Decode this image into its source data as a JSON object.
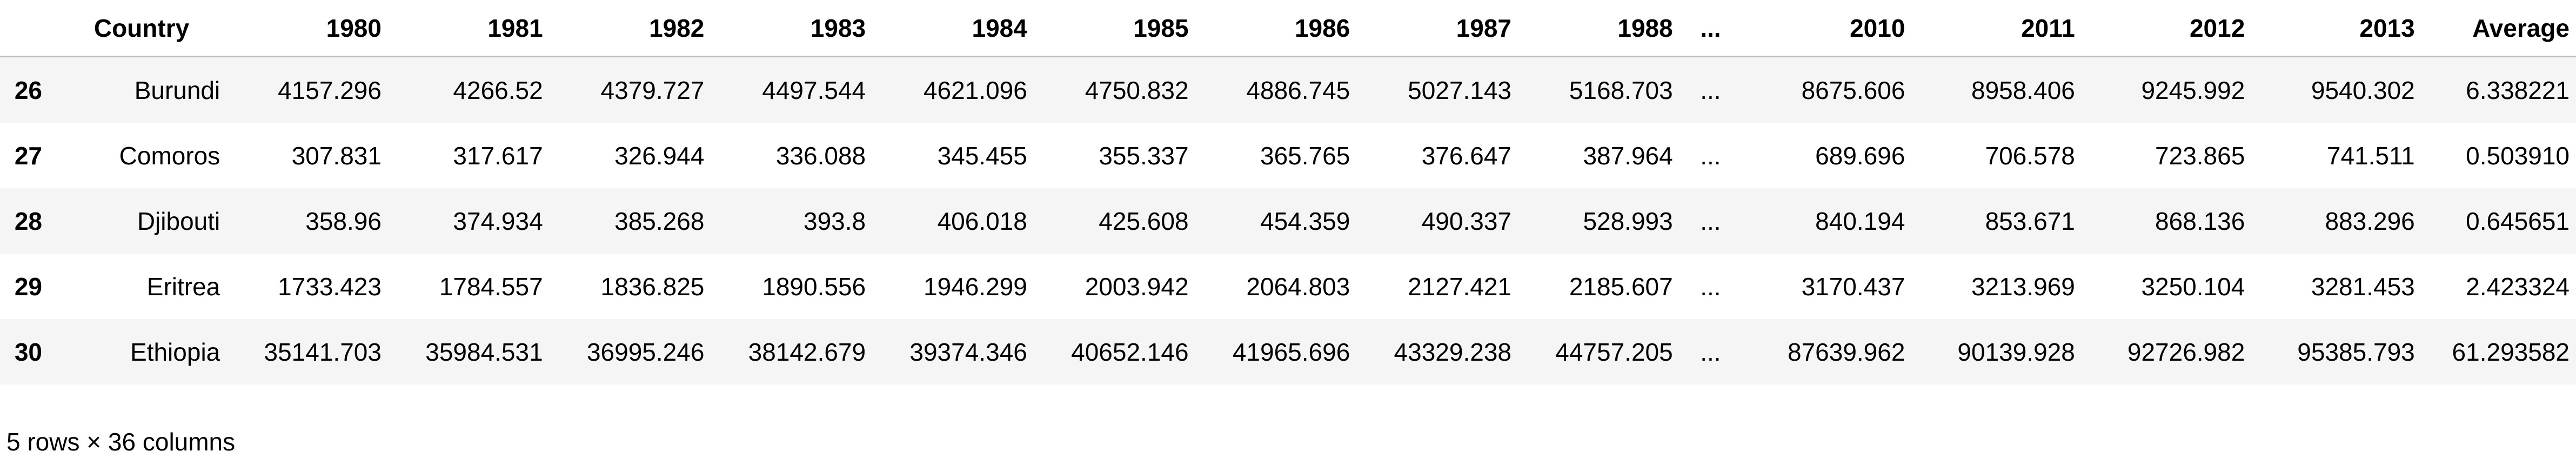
{
  "table": {
    "index_header": "",
    "columns": [
      "Country",
      "1980",
      "1981",
      "1982",
      "1983",
      "1984",
      "1985",
      "1986",
      "1987",
      "1988",
      "...",
      "2010",
      "2011",
      "2012",
      "2013",
      "Average"
    ],
    "rows": [
      {
        "index": "26",
        "cells": [
          "Burundi",
          "4157.296",
          "4266.52",
          "4379.727",
          "4497.544",
          "4621.096",
          "4750.832",
          "4886.745",
          "5027.143",
          "5168.703",
          "...",
          "8675.606",
          "8958.406",
          "9245.992",
          "9540.302",
          "6.338221"
        ]
      },
      {
        "index": "27",
        "cells": [
          "Comoros",
          "307.831",
          "317.617",
          "326.944",
          "336.088",
          "345.455",
          "355.337",
          "365.765",
          "376.647",
          "387.964",
          "...",
          "689.696",
          "706.578",
          "723.865",
          "741.511",
          "0.503910"
        ]
      },
      {
        "index": "28",
        "cells": [
          "Djibouti",
          "358.96",
          "374.934",
          "385.268",
          "393.8",
          "406.018",
          "425.608",
          "454.359",
          "490.337",
          "528.993",
          "...",
          "840.194",
          "853.671",
          "868.136",
          "883.296",
          "0.645651"
        ]
      },
      {
        "index": "29",
        "cells": [
          "Eritrea",
          "1733.423",
          "1784.557",
          "1836.825",
          "1890.556",
          "1946.299",
          "2003.942",
          "2064.803",
          "2127.421",
          "2185.607",
          "...",
          "3170.437",
          "3213.969",
          "3250.104",
          "3281.453",
          "2.423324"
        ]
      },
      {
        "index": "30",
        "cells": [
          "Ethiopia",
          "35141.703",
          "35984.531",
          "36995.246",
          "38142.679",
          "39374.346",
          "40652.146",
          "41965.696",
          "43329.238",
          "44757.205",
          "...",
          "87639.962",
          "90139.928",
          "92726.982",
          "95385.793",
          "61.293582"
        ]
      }
    ]
  },
  "footer": {
    "shape_text": "5 rows × 36 columns"
  }
}
